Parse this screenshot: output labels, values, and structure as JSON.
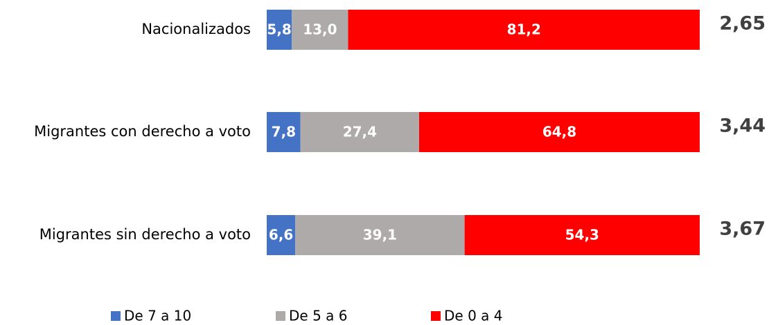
{
  "chart_data": {
    "type": "stacked-bar-horizontal",
    "categories": [
      "Nacionalizados",
      "Migrantes con derecho a voto",
      "Migrantes sin derecho a voto"
    ],
    "series": [
      {
        "name": "De 7 a 10",
        "color": "#4472c4",
        "values": [
          5.8,
          7.8,
          6.6
        ],
        "value_labels": [
          "5,8",
          "7,8",
          "6,6"
        ]
      },
      {
        "name": "De 5 a 6",
        "color": "#aeaaaa",
        "values": [
          13.0,
          27.4,
          39.1
        ],
        "value_labels": [
          "13,0",
          "27,4",
          "39,1"
        ]
      },
      {
        "name": "De 0 a 4",
        "color": "#ff0000",
        "values": [
          81.2,
          64.8,
          54.3
        ],
        "value_labels": [
          "81,2",
          "64,8",
          "54,3"
        ]
      }
    ],
    "side_values": [
      2.65,
      3.44,
      3.67
    ],
    "side_value_labels": [
      "2,65",
      "3,44",
      "3,67"
    ],
    "xlim": [
      0,
      100
    ],
    "legend": "bottom"
  }
}
